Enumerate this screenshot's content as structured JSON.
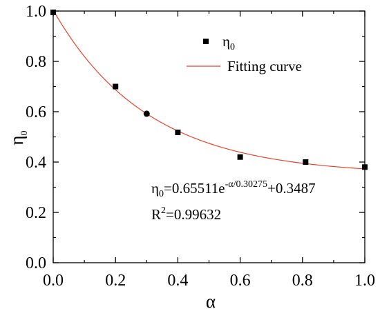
{
  "chart_data": {
    "type": "scatter",
    "xlabel": "α",
    "ylabel": {
      "base": "η",
      "sub": "0"
    },
    "xlim": [
      0,
      1
    ],
    "ylim": [
      0,
      1
    ],
    "xticks": [
      "0.0",
      "0.2",
      "0.4",
      "0.6",
      "0.8",
      "1.0"
    ],
    "yticks": [
      "0.0",
      "0.2",
      "0.4",
      "0.6",
      "0.8",
      "1.0"
    ],
    "grid": false,
    "legend_position": "top-right",
    "series": [
      {
        "name": "η0",
        "type": "scatter",
        "marker": "square",
        "color": "#000000",
        "x": [
          0.0,
          0.2,
          0.3,
          0.4,
          0.6,
          0.81,
          1.0
        ],
        "y": [
          0.995,
          0.7,
          0.592,
          0.518,
          0.42,
          0.4,
          0.38
        ],
        "marker_shapes": [
          "square",
          "square",
          "circle",
          "square",
          "square",
          "square",
          "square"
        ]
      },
      {
        "name": "Fitting curve",
        "type": "line",
        "color": "#e8412a",
        "model": {
          "A": 0.65511,
          "t": 0.30275,
          "y0": 0.3487
        }
      }
    ],
    "legend": {
      "scatter": {
        "base": "η",
        "sub": "0"
      },
      "line": "Fitting curve"
    },
    "annotation": {
      "eq_lhs": "η",
      "eq_lhs_sub": "0",
      "eq_mid": "=0.65511e",
      "eq_exp": "-α/0.30275",
      "eq_tail": "+0.3487",
      "r2_base": "R",
      "r2_sup": "2",
      "r2_val": "=0.99632"
    }
  }
}
